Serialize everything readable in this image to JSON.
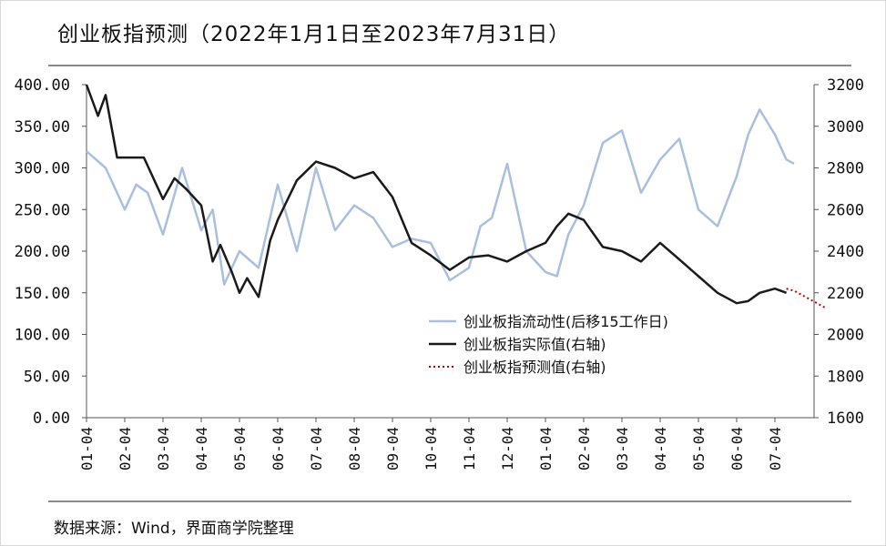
{
  "title": "创业板指预测（2022年1月1日至2023年7月31日）",
  "source": "数据来源：Wind，界面商学院整理",
  "colors": {
    "liquidity": "#a9bfdf",
    "actual": "#1a1a1a",
    "forecast": "#c00000",
    "axis": "#555555"
  },
  "chart_data": {
    "type": "line",
    "title": "创业板指预测（2022年1月1日至2023年7月31日）",
    "x_ticks": [
      "01-04",
      "02-04",
      "03-04",
      "04-04",
      "05-04",
      "06-04",
      "07-04",
      "08-04",
      "09-04",
      "10-04",
      "11-04",
      "12-04",
      "01-04",
      "02-04",
      "03-04",
      "04-04",
      "05-04",
      "06-04",
      "07-04"
    ],
    "y_left": {
      "ticks": [
        "0.00",
        "50.00",
        "100.00",
        "150.00",
        "200.00",
        "250.00",
        "300.00",
        "350.00",
        "400.00"
      ],
      "lim": [
        0,
        400
      ]
    },
    "y_right": {
      "ticks": [
        "1600",
        "1800",
        "2000",
        "2200",
        "2400",
        "2600",
        "2800",
        "3000",
        "3200"
      ],
      "lim": [
        1600,
        3200
      ]
    },
    "legend": {
      "position": "lower-right"
    },
    "series": [
      {
        "name": "创业板指流动性(后移15工作日)",
        "axis": "left",
        "x": [
          0,
          0.5,
          1,
          1.3,
          1.6,
          2,
          2.5,
          3,
          3.3,
          3.6,
          4,
          4.5,
          5,
          5.5,
          6,
          6.5,
          7,
          7.5,
          8,
          8.5,
          9,
          9.5,
          10,
          10.3,
          10.6,
          11,
          11.5,
          12,
          12.3,
          12.6,
          13,
          13.5,
          14,
          14.5,
          15,
          15.5,
          16,
          16.5,
          17,
          17.3,
          17.6,
          18,
          18.3,
          18.5
        ],
        "values": [
          320,
          300,
          250,
          280,
          270,
          220,
          300,
          225,
          250,
          160,
          200,
          180,
          280,
          200,
          300,
          225,
          255,
          240,
          205,
          215,
          210,
          165,
          180,
          230,
          240,
          305,
          200,
          175,
          170,
          220,
          255,
          330,
          345,
          270,
          310,
          335,
          250,
          230,
          290,
          340,
          370,
          340,
          310,
          305
        ]
      },
      {
        "name": "创业板指实际值(右轴)",
        "axis": "right",
        "x": [
          0,
          0.3,
          0.5,
          0.8,
          1,
          1.5,
          2,
          2.3,
          2.6,
          3,
          3.3,
          3.5,
          3.8,
          4,
          4.2,
          4.5,
          4.8,
          5,
          5.5,
          6,
          6.5,
          7,
          7.5,
          8,
          8.5,
          9,
          9.5,
          10,
          10.5,
          11,
          11.5,
          12,
          12.3,
          12.6,
          13,
          13.5,
          14,
          14.5,
          15,
          15.5,
          16,
          16.5,
          17,
          17.3,
          17.6,
          18,
          18.3
        ],
        "values": [
          3200,
          3050,
          3150,
          2850,
          2850,
          2850,
          2650,
          2750,
          2700,
          2620,
          2350,
          2430,
          2300,
          2200,
          2270,
          2180,
          2450,
          2550,
          2740,
          2830,
          2800,
          2750,
          2780,
          2660,
          2440,
          2380,
          2310,
          2370,
          2380,
          2350,
          2400,
          2440,
          2520,
          2580,
          2550,
          2420,
          2400,
          2350,
          2440,
          2360,
          2280,
          2200,
          2150,
          2160,
          2200,
          2220,
          2200
        ]
      },
      {
        "name": "创业板指预测值(右轴)",
        "axis": "right",
        "x": [
          18.3,
          18.5,
          18.7,
          18.9,
          19.1,
          19.3
        ],
        "values": [
          2220,
          2210,
          2190,
          2170,
          2150,
          2130
        ]
      }
    ]
  }
}
